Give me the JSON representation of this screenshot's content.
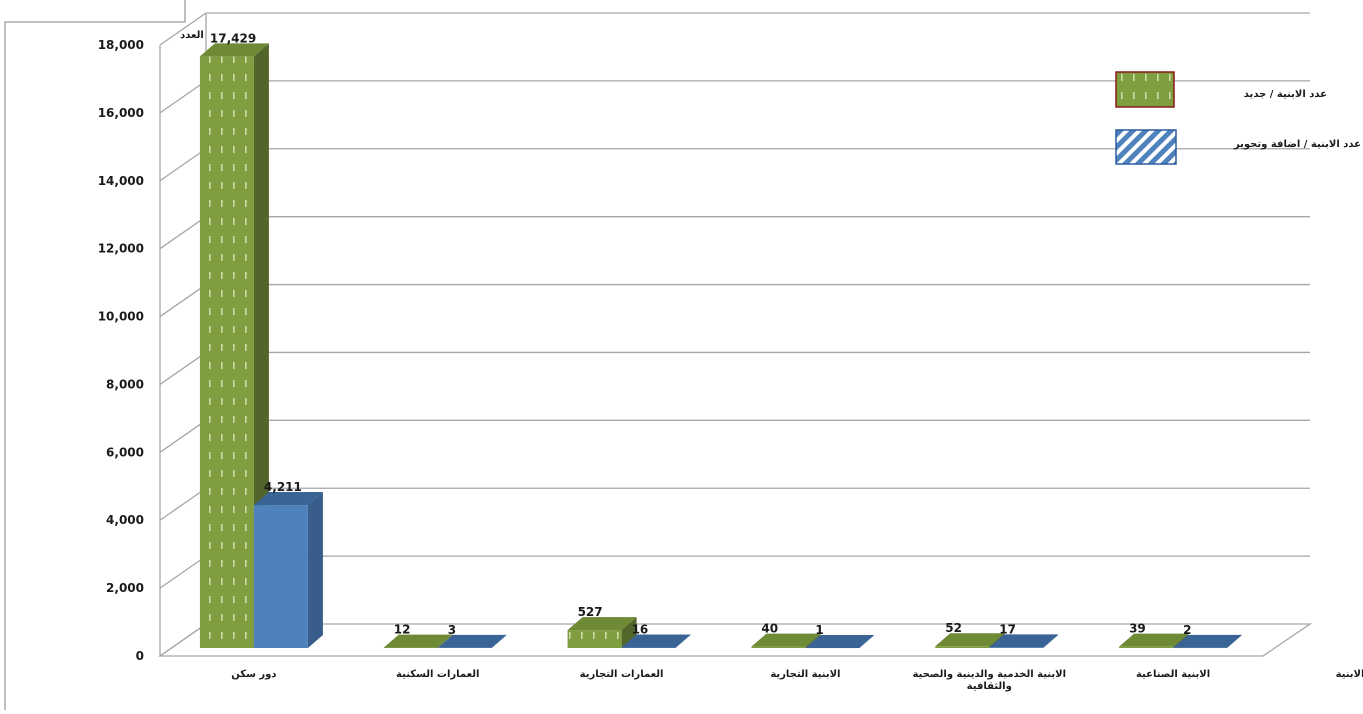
{
  "chart_data": {
    "type": "bar",
    "title": "",
    "ylabel": "العدد",
    "xlabel": "الابنية",
    "ylim": [
      0,
      18000
    ],
    "yticks": [
      "0",
      "2,000",
      "4,000",
      "6,000",
      "8,000",
      "10,000",
      "12,000",
      "14,000",
      "16,000",
      "18,000"
    ],
    "categories": [
      [
        "دور سكن"
      ],
      [
        "العمارات السكنية"
      ],
      [
        "العمارات التجارية"
      ],
      [
        "الابنية التجارية"
      ],
      [
        "الابنية الخدمية والدينية والصحية",
        "والثقافية"
      ],
      [
        "الابنية الصناعية"
      ]
    ],
    "series": [
      {
        "name": "عدد الابنية / جديد",
        "values": [
          17429,
          12,
          527,
          40,
          52,
          39
        ],
        "labels": [
          "17,429",
          "12",
          "527",
          "40",
          "52",
          "39"
        ]
      },
      {
        "name": "عدد الابنية / اضافة وتحوير",
        "values": [
          4211,
          3,
          16,
          1,
          17,
          2
        ],
        "labels": [
          "4,211",
          "3",
          "16",
          "1",
          "17",
          "2"
        ]
      }
    ],
    "grid": true,
    "legend_position": "top-right",
    "colors": {
      "series1_front": "#7f9e3f",
      "series1_side": "#52652a",
      "series1_top": "#6e8a34",
      "series1_border": "#8b1a1a",
      "series2_front": "#4f81bd",
      "series2_side": "#385d8a",
      "series2_top": "#3a6396",
      "series2_border": "#2c5ca0",
      "grid": "#a6a6a6",
      "floor": "#a6a6a6"
    }
  }
}
